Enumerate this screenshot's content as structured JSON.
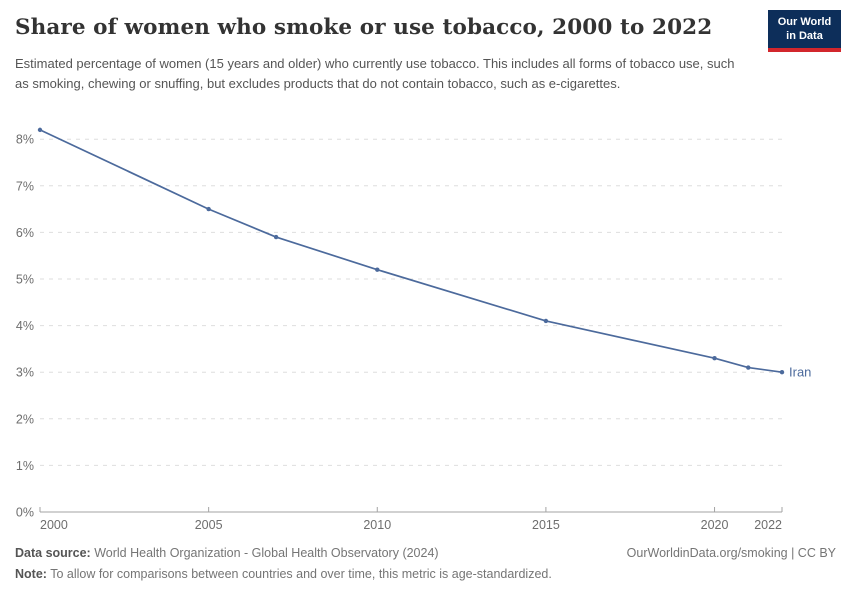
{
  "header": {
    "title": "Share of women who smoke or use tobacco, 2000 to 2022",
    "subtitle": "Estimated percentage of women (15 years and older) who currently use tobacco. This includes all forms of tobacco use, such as smoking, chewing or snuffing, but excludes products that do not contain tobacco, such as e-cigarettes.",
    "logo": {
      "line1": "Our World",
      "line2": "in Data",
      "bg_color": "#0d2e5a",
      "stripe_color": "#d2262c"
    }
  },
  "chart_data": {
    "type": "line",
    "title": "Share of women who smoke or use tobacco, 2000 to 2022",
    "series": [
      {
        "name": "Iran",
        "color": "#4C6A9C",
        "points": [
          {
            "year": 2000,
            "value": 8.2
          },
          {
            "year": 2005,
            "value": 6.5
          },
          {
            "year": 2007,
            "value": 5.9
          },
          {
            "year": 2010,
            "value": 5.2
          },
          {
            "year": 2015,
            "value": 4.1
          },
          {
            "year": 2020,
            "value": 3.3
          },
          {
            "year": 2021,
            "value": 3.1
          },
          {
            "year": 2022,
            "value": 3.0
          }
        ]
      }
    ],
    "xlim": [
      2000,
      2022
    ],
    "ylim": [
      0,
      8.2
    ],
    "x_ticks": [
      2000,
      2005,
      2010,
      2015,
      2020,
      2022
    ],
    "y_ticks": [
      0,
      1,
      2,
      3,
      4,
      5,
      6,
      7,
      8
    ],
    "y_tick_suffix": "%",
    "grid": "horizontal-dashed",
    "legend": "end-of-line-label",
    "axis_color": "#a3a3a3",
    "grid_color": "#dedede",
    "tick_label_color": "#6e6e6e"
  },
  "footer": {
    "datasource_label": "Data source:",
    "datasource_text": " World Health Organization - Global Health Observatory (2024)",
    "rights": "OurWorldinData.org/smoking | CC BY",
    "note_label": "Note:",
    "note_text": " To allow for comparisons between countries and over time, this metric is age-standardized."
  }
}
